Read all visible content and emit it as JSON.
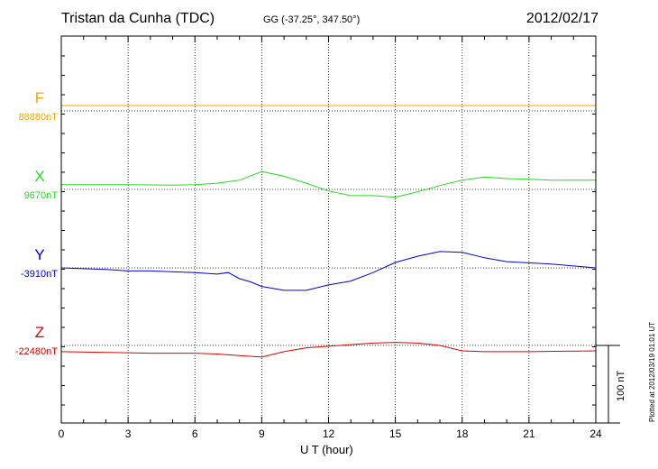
{
  "header": {
    "station": "Tristan da Cunha (TDC)",
    "coords": "GG (-37.25°, 347.50°)",
    "date": "2012/02/17"
  },
  "footer": {
    "plotted": "Plotted at 2012/03/19 01:01 UT",
    "scale_label": "100 nT"
  },
  "chart_data": {
    "type": "line",
    "title": "Tristan da Cunha (TDC)",
    "xlabel": "U T (hour)",
    "ylabel": "",
    "xlim": [
      0,
      24
    ],
    "xticks": [
      "0",
      "3",
      "6",
      "9",
      "12",
      "15",
      "18",
      "21",
      "24"
    ],
    "grid": true,
    "scale_bar_nT": 100,
    "components": [
      {
        "label": "F",
        "baseline": "88880nT",
        "color": "#f0a800",
        "x": [
          0,
          24
        ],
        "values": [
          7,
          7
        ]
      },
      {
        "label": "X",
        "baseline": "9670nT",
        "color": "#22dd22",
        "x": [
          0,
          3,
          5,
          6,
          7,
          8,
          9,
          10,
          11,
          12,
          13,
          14,
          15,
          16,
          17,
          18,
          19,
          20,
          21,
          22,
          24
        ],
        "values": [
          6,
          6,
          5.5,
          6,
          8,
          12,
          23,
          17,
          8,
          -2,
          -8,
          -8,
          -10,
          -3,
          5,
          12,
          16,
          14,
          13,
          12,
          12
        ]
      },
      {
        "label": "Y",
        "baseline": "-3910nT",
        "color": "#0000dd",
        "x": [
          0,
          2,
          3,
          4,
          6,
          7,
          7.5,
          8,
          8.5,
          9,
          10,
          11,
          12,
          13,
          14,
          15,
          16,
          17,
          18,
          19,
          20,
          22,
          24
        ],
        "values": [
          0,
          -2,
          -4,
          -4,
          -6,
          -8,
          -6,
          -14,
          -18,
          -24,
          -29,
          -29,
          -22,
          -17,
          -6,
          7,
          15,
          21,
          20,
          13,
          8,
          5,
          0
        ]
      },
      {
        "label": "Z",
        "baseline": "-22480nT",
        "color": "#dd0000",
        "x": [
          0,
          2,
          4,
          6,
          7,
          8,
          9,
          10,
          11,
          12,
          13,
          14,
          15,
          16,
          17,
          18,
          19,
          21,
          24
        ],
        "values": [
          -8,
          -9,
          -10,
          -10,
          -11,
          -13,
          -15,
          -8,
          -3,
          -1,
          1,
          3,
          4,
          3,
          0,
          -7,
          -8,
          -8,
          -7
        ]
      }
    ]
  }
}
